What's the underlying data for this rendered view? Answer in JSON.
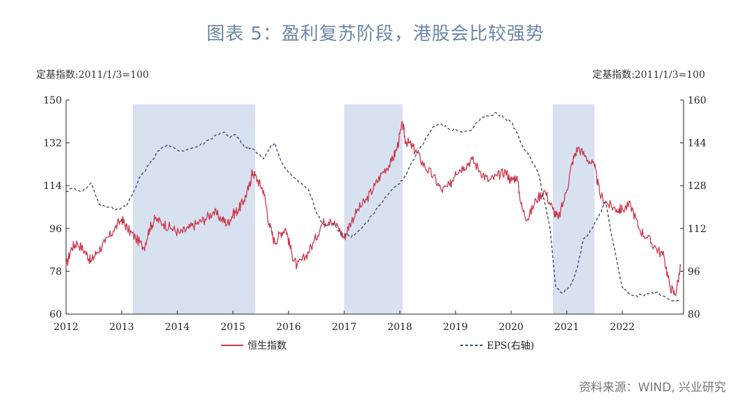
{
  "title": "图表 5：盈利复苏阶段，港股会比较强势",
  "source": "资料来源：WIND, 兴业研究",
  "chart_data": {
    "type": "line",
    "left_axis_label": "定基指数:2011/1/3=100",
    "right_axis_label": "定基指数:2011/1/3=100",
    "x_ticks": [
      "2012",
      "2013",
      "2014",
      "2015",
      "2016",
      "2017",
      "2018",
      "2019",
      "2020",
      "2021",
      "2022"
    ],
    "xlim": [
      2012,
      2023.1
    ],
    "ylim_left": [
      60,
      150
    ],
    "yticks_left": [
      60,
      78,
      96,
      114,
      132,
      150
    ],
    "ylim_right": [
      80,
      160
    ],
    "yticks_right": [
      80,
      96,
      112,
      128,
      144,
      160
    ],
    "grid": false,
    "shaded_periods": [
      [
        2013.2,
        2015.4
      ],
      [
        2017.0,
        2018.05
      ],
      [
        2020.75,
        2021.5
      ]
    ],
    "legend_position": "bottom-center",
    "series": [
      {
        "name": "恒生指数",
        "axis": "left",
        "color": "#c9384a",
        "style": "solid",
        "x": [
          2012.0,
          2012.1,
          2012.2,
          2012.35,
          2012.45,
          2012.55,
          2012.7,
          2012.85,
          2013.0,
          2013.1,
          2013.25,
          2013.4,
          2013.5,
          2013.6,
          2013.75,
          2013.9,
          2014.05,
          2014.2,
          2014.35,
          2014.5,
          2014.65,
          2014.8,
          2014.9,
          2015.0,
          2015.1,
          2015.2,
          2015.3,
          2015.35,
          2015.45,
          2015.55,
          2015.65,
          2015.75,
          2015.85,
          2015.95,
          2016.05,
          2016.15,
          2016.3,
          2016.45,
          2016.6,
          2016.75,
          2016.9,
          2017.0,
          2017.1,
          2017.25,
          2017.4,
          2017.55,
          2017.7,
          2017.85,
          2017.95,
          2018.05,
          2018.1,
          2018.2,
          2018.3,
          2018.45,
          2018.6,
          2018.75,
          2018.9,
          2019.0,
          2019.15,
          2019.3,
          2019.45,
          2019.6,
          2019.75,
          2019.9,
          2020.0,
          2020.1,
          2020.2,
          2020.3,
          2020.45,
          2020.6,
          2020.75,
          2020.85,
          2021.0,
          2021.1,
          2021.2,
          2021.35,
          2021.5,
          2021.6,
          2021.75,
          2021.9,
          2022.0,
          2022.15,
          2022.3,
          2022.45,
          2022.6,
          2022.75,
          2022.85,
          2022.95,
          2023.05
        ],
        "y": [
          80,
          88,
          90,
          86,
          82,
          86,
          90,
          95,
          100,
          96,
          92,
          88,
          96,
          100,
          98,
          96,
          94,
          96,
          98,
          100,
          103,
          100,
          98,
          102,
          104,
          108,
          114,
          120,
          116,
          112,
          98,
          90,
          94,
          96,
          86,
          80,
          84,
          90,
          98,
          100,
          96,
          92,
          98,
          104,
          108,
          114,
          120,
          124,
          130,
          140,
          133,
          131,
          128,
          122,
          118,
          112,
          114,
          120,
          122,
          125,
          120,
          116,
          118,
          120,
          116,
          118,
          104,
          100,
          108,
          112,
          104,
          100,
          112,
          124,
          130,
          126,
          122,
          110,
          106,
          104,
          104,
          106,
          96,
          92,
          88,
          84,
          72,
          68,
          80
        ],
        "legend_label": "恒生指数"
      },
      {
        "name": "EPS(右轴)",
        "axis": "right",
        "color": "#3a4f6e",
        "style": "dashed",
        "x": [
          2012.0,
          2012.15,
          2012.3,
          2012.45,
          2012.6,
          2012.75,
          2012.9,
          2013.0,
          2013.1,
          2013.2,
          2013.35,
          2013.5,
          2013.65,
          2013.8,
          2013.95,
          2014.1,
          2014.25,
          2014.4,
          2014.55,
          2014.7,
          2014.85,
          2014.95,
          2015.05,
          2015.15,
          2015.25,
          2015.35,
          2015.45,
          2015.55,
          2015.65,
          2015.75,
          2015.85,
          2015.95,
          2016.05,
          2016.2,
          2016.35,
          2016.5,
          2016.6,
          2016.7,
          2016.8,
          2016.9,
          2017.0,
          2017.1,
          2017.2,
          2017.35,
          2017.5,
          2017.65,
          2017.8,
          2017.95,
          2018.05,
          2018.15,
          2018.3,
          2018.45,
          2018.6,
          2018.75,
          2018.9,
          2019.0,
          2019.15,
          2019.3,
          2019.45,
          2019.6,
          2019.75,
          2019.9,
          2020.0,
          2020.1,
          2020.2,
          2020.3,
          2020.4,
          2020.5,
          2020.6,
          2020.7,
          2020.8,
          2020.9,
          2021.0,
          2021.1,
          2021.2,
          2021.3,
          2021.4,
          2021.5,
          2021.6,
          2021.7,
          2021.8,
          2021.9,
          2022.0,
          2022.1,
          2022.2,
          2022.35,
          2022.5,
          2022.65,
          2022.8,
          2022.95,
          2023.05
        ],
        "y": [
          126,
          127,
          126,
          129,
          121,
          120,
          119,
          120,
          121,
          125,
          132,
          136,
          141,
          143,
          142,
          141,
          142,
          143,
          145,
          147,
          148,
          146,
          147,
          144,
          142,
          142,
          140,
          138,
          142,
          144,
          138,
          134,
          132,
          129,
          127,
          118,
          114,
          113,
          114,
          111,
          110,
          109,
          110,
          113,
          117,
          121,
          125,
          128,
          130,
          134,
          140,
          145,
          150,
          151,
          149,
          149,
          148,
          149,
          153,
          154,
          155,
          153,
          152,
          148,
          143,
          140,
          136,
          132,
          122,
          112,
          90,
          88,
          89,
          92,
          98,
          108,
          110,
          114,
          118,
          122,
          110,
          100,
          90,
          88,
          87,
          87,
          88,
          88,
          86,
          85,
          85
        ],
        "legend_label": "EPS(右轴)"
      }
    ]
  }
}
